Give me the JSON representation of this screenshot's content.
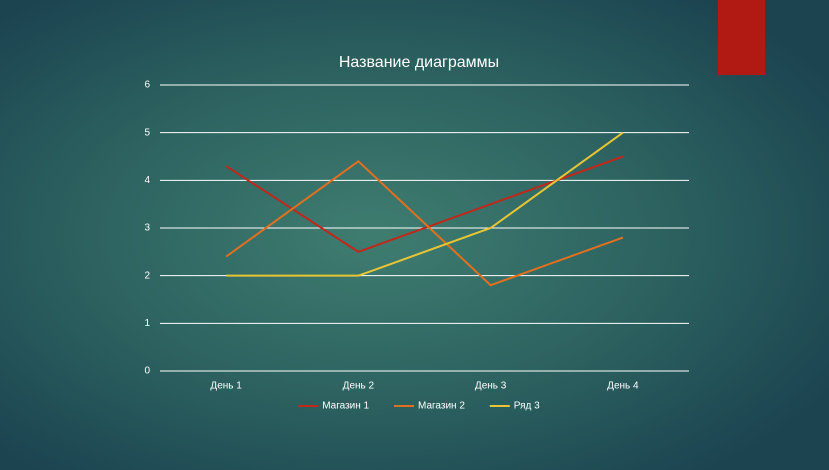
{
  "chart_data": {
    "type": "line",
    "title": "Название диаграммы",
    "categories": [
      "День 1",
      "День 2",
      "День 3",
      "День 4"
    ],
    "series": [
      {
        "name": "Магазин 1",
        "color": "#c0281c",
        "values": [
          4.3,
          2.5,
          3.5,
          4.5
        ]
      },
      {
        "name": "Магазин 2",
        "color": "#e07020",
        "values": [
          2.4,
          4.4,
          1.8,
          2.8
        ]
      },
      {
        "name": "Ряд 3",
        "color": "#e8c534",
        "values": [
          2,
          2,
          3,
          5
        ]
      }
    ],
    "ylim": [
      0,
      6
    ],
    "yticks": [
      0,
      1,
      2,
      3,
      4,
      5,
      6
    ],
    "grid": true,
    "legend": "bottom"
  }
}
